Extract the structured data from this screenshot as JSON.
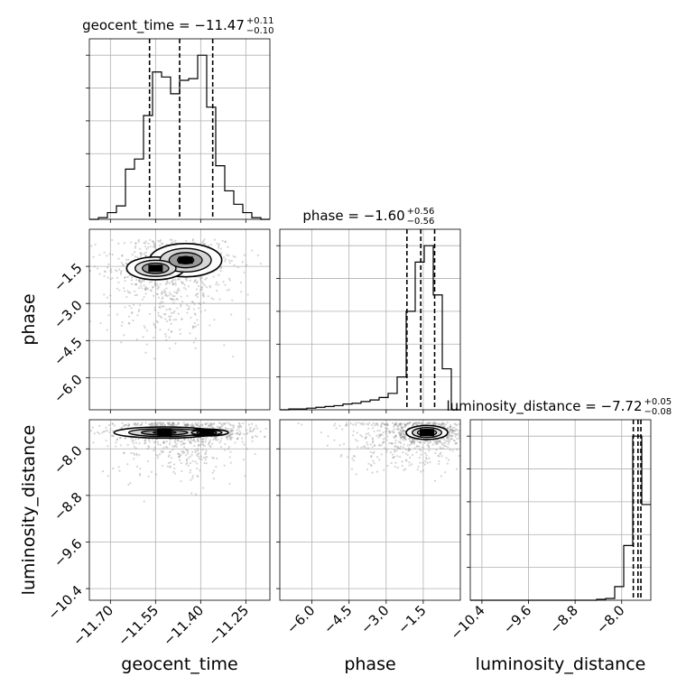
{
  "chart_data": {
    "type": "corner",
    "grid": true,
    "parameters": [
      {
        "name": "geocent_time",
        "axis_label": "geocent_time",
        "title_main": "geocent_time = −11.47",
        "title_sup": "+0.11",
        "title_sub": "−0.10",
        "range": [
          -11.77,
          -11.17
        ],
        "ticks": [
          -11.7,
          -11.55,
          -11.4,
          -11.25
        ],
        "tick_labels": [
          "−11.70",
          "−11.55",
          "−11.40",
          "−11.25"
        ],
        "quantiles": [
          -11.57,
          -11.47,
          -11.36
        ],
        "hist_edges": [
          -11.77,
          -11.74,
          -11.71,
          -11.68,
          -11.65,
          -11.62,
          -11.59,
          -11.56,
          -11.53,
          -11.5,
          -11.47,
          -11.44,
          -11.41,
          -11.38,
          -11.35,
          -11.32,
          -11.29,
          -11.26,
          -11.23,
          -11.2,
          -11.17
        ],
        "hist_counts": [
          0,
          1,
          4,
          8,
          30,
          36,
          62,
          88,
          85,
          75,
          83,
          84,
          98,
          67,
          32,
          17,
          9,
          4,
          1,
          0
        ]
      },
      {
        "name": "phase",
        "axis_label": "phase",
        "title_main": "phase = −1.60",
        "title_sup": "+0.56",
        "title_sub": "−0.56",
        "range": [
          -7.3,
          0.0
        ],
        "ticks": [
          -6.0,
          -4.5,
          -3.0,
          -1.5
        ],
        "tick_labels": [
          "−6.0",
          "−4.5",
          "−3.0",
          "−1.5"
        ],
        "quantiles": [
          -2.16,
          -1.6,
          -1.04
        ],
        "hist_edges": [
          -7.3,
          -6.935,
          -6.57,
          -6.205,
          -5.84,
          -5.475,
          -5.11,
          -4.745,
          -4.38,
          -4.015,
          -3.65,
          -3.285,
          -2.92,
          -2.555,
          -2.19,
          -1.825,
          -1.46,
          -1.095,
          -0.73,
          -0.365,
          0.0
        ],
        "hist_counts": [
          0,
          1,
          1,
          2,
          3,
          4,
          5,
          7,
          8,
          10,
          12,
          15,
          20,
          40,
          120,
          180,
          200,
          140,
          50,
          0
        ]
      },
      {
        "name": "luminosity_distance",
        "axis_label": "luminosity_distance",
        "title_main": "luminosity_distance = −7.72",
        "title_sup": "+0.05",
        "title_sub": "−0.08",
        "range": [
          -10.6,
          -7.5
        ],
        "ticks": [
          -10.4,
          -9.6,
          -8.8,
          -8.0
        ],
        "tick_labels": [
          "−10.4",
          "−9.6",
          "−8.8",
          "−8.0"
        ],
        "quantiles": [
          -7.8,
          -7.72,
          -7.67
        ],
        "hist_edges": [
          -10.6,
          -10.445,
          -10.29,
          -10.135,
          -9.98,
          -9.825,
          -9.67,
          -9.515,
          -9.36,
          -9.205,
          -9.05,
          -8.895,
          -8.74,
          -8.585,
          -8.43,
          -8.275,
          -8.12,
          -7.965,
          -7.81,
          -7.655,
          -7.5
        ],
        "hist_counts": [
          0,
          0,
          0,
          0,
          0,
          0,
          0,
          0,
          0,
          0,
          0,
          0,
          0,
          0,
          1,
          2,
          15,
          60,
          180,
          105
        ]
      }
    ],
    "pairs": [
      {
        "x": "geocent_time",
        "y": "phase",
        "density_peaks": [
          {
            "x": -11.45,
            "y": -1.25,
            "sx": 0.05,
            "sy": 0.28,
            "w": 1.0
          },
          {
            "x": -11.55,
            "y": -1.58,
            "sx": 0.05,
            "sy": 0.24,
            "w": 0.8
          }
        ],
        "scatter_center": {
          "x": -11.52,
          "y": -2.3,
          "sx": 0.1,
          "sy": 1.2
        }
      },
      {
        "x": "geocent_time",
        "y": "luminosity_distance",
        "density_peaks": [
          {
            "x": -11.52,
            "y": -7.72,
            "sx": 0.07,
            "sy": 0.04,
            "w": 1.0
          },
          {
            "x": -11.38,
            "y": -7.72,
            "sx": 0.05,
            "sy": 0.04,
            "w": 0.6
          }
        ],
        "scatter_center": {
          "x": -11.47,
          "y": -7.85,
          "sx": 0.1,
          "sy": 0.35
        }
      },
      {
        "x": "phase",
        "y": "luminosity_distance",
        "density_peaks": [
          {
            "x": -1.35,
            "y": -7.72,
            "sx": 0.35,
            "sy": 0.05,
            "w": 1.0
          }
        ],
        "scatter_center": {
          "x": -2.3,
          "y": -7.8,
          "sx": 1.4,
          "sy": 0.3
        }
      }
    ]
  }
}
